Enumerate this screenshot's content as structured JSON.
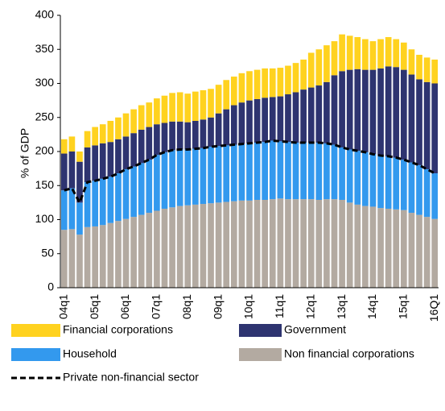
{
  "chart_data": {
    "type": "stacked_bar_line",
    "y_label": "% of GDP",
    "categories": [
      "04q1",
      null,
      null,
      null,
      "05q1",
      null,
      null,
      null,
      "06q1",
      null,
      null,
      null,
      "07q1",
      null,
      null,
      null,
      "08q1",
      null,
      null,
      null,
      "09q1",
      null,
      null,
      null,
      "10q1",
      null,
      null,
      null,
      "11q1",
      null,
      null,
      null,
      "12q1",
      null,
      null,
      null,
      "13q1",
      null,
      null,
      null,
      "14q1",
      null,
      null,
      null,
      "15q1",
      null,
      null,
      null,
      "16Q1"
    ],
    "ylim": [
      0,
      400
    ],
    "yticks": [
      0,
      50,
      100,
      150,
      200,
      250,
      300,
      350,
      400
    ],
    "series": [
      {
        "name": "Non financial corporations",
        "color": "#b3aaa1",
        "values": [
          85,
          86,
          78,
          89,
          90,
          92,
          95,
          98,
          101,
          104,
          107,
          110,
          113,
          116,
          118,
          120,
          121,
          122,
          123,
          124,
          125,
          126,
          127,
          128,
          128,
          129,
          129,
          130,
          131,
          130,
          130,
          130,
          130,
          129,
          130,
          130,
          129,
          125,
          122,
          120,
          119,
          117,
          116,
          115,
          114,
          110,
          107,
          104,
          101
        ]
      },
      {
        "name": "Household",
        "color": "#3399ee",
        "values": [
          58,
          60,
          47,
          66,
          67,
          68,
          68,
          70,
          73,
          74,
          76,
          78,
          82,
          83,
          84,
          83,
          82,
          82,
          82,
          83,
          83,
          83,
          83,
          83,
          84,
          84,
          85,
          86,
          84,
          84,
          83,
          83,
          83,
          84,
          82,
          80,
          77,
          78,
          79,
          79,
          77,
          77,
          77,
          76,
          74,
          74,
          73,
          70,
          67
        ]
      },
      {
        "name": "Government",
        "color": "#2e3470",
        "values": [
          54,
          54,
          60,
          51,
          52,
          52,
          51,
          50,
          48,
          49,
          49,
          48,
          45,
          43,
          42,
          41,
          40,
          41,
          42,
          43,
          48,
          53,
          58,
          61,
          63,
          64,
          65,
          64,
          66,
          70,
          74,
          78,
          81,
          84,
          90,
          102,
          112,
          117,
          120,
          121,
          124,
          128,
          132,
          133,
          132,
          129,
          126,
          128,
          132
        ]
      },
      {
        "name": "Financial corporations",
        "color": "#ffd21f",
        "values": [
          21,
          22,
          15,
          24,
          27,
          28,
          31,
          32,
          34,
          35,
          36,
          36,
          38,
          40,
          42,
          43,
          42,
          43,
          43,
          42,
          42,
          43,
          42,
          43,
          43,
          43,
          43,
          42,
          42,
          42,
          43,
          44,
          51,
          53,
          54,
          50,
          54,
          50,
          47,
          45,
          42,
          43,
          43,
          41,
          40,
          37,
          36,
          36,
          35
        ]
      },
      {
        "name": "Private non-financial sector",
        "type": "line",
        "color": "#000000",
        "values": [
          143,
          146,
          125,
          155,
          157,
          160,
          163,
          168,
          174,
          178,
          183,
          188,
          195,
          199,
          202,
          203,
          203,
          204,
          205,
          207,
          208,
          209,
          210,
          211,
          212,
          213,
          214,
          216,
          215,
          214,
          213,
          213,
          213,
          213,
          212,
          210,
          206,
          203,
          201,
          199,
          196,
          194,
          193,
          191,
          188,
          184,
          180,
          174,
          168
        ]
      }
    ]
  }
}
